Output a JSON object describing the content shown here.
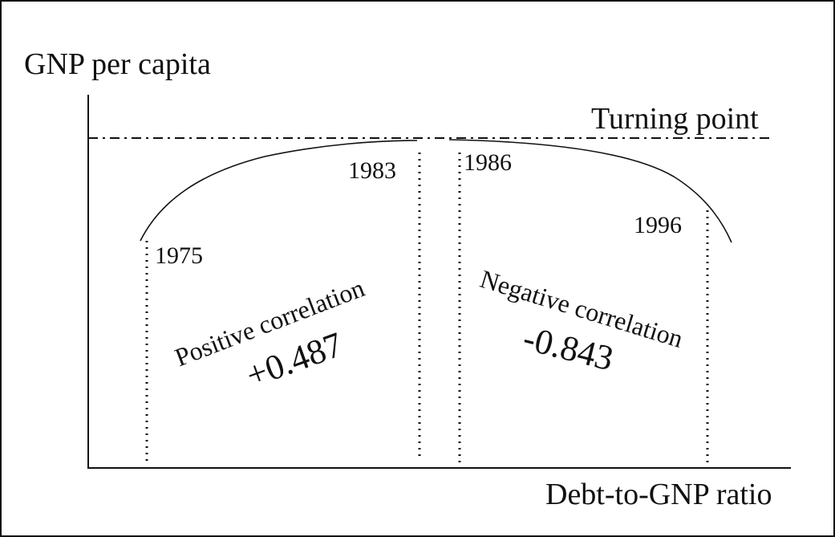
{
  "diagram": {
    "y_axis_label": "GNP per capita",
    "x_axis_label": "Debt-to-GNP ratio",
    "turning_point_label": "Turning point",
    "years": [
      "1975",
      "1983",
      "1986",
      "1996"
    ],
    "positive": {
      "label": "Positive correlation",
      "value": "+0.487"
    },
    "negative": {
      "label": "Negative correlation",
      "value": "-0.843"
    }
  }
}
